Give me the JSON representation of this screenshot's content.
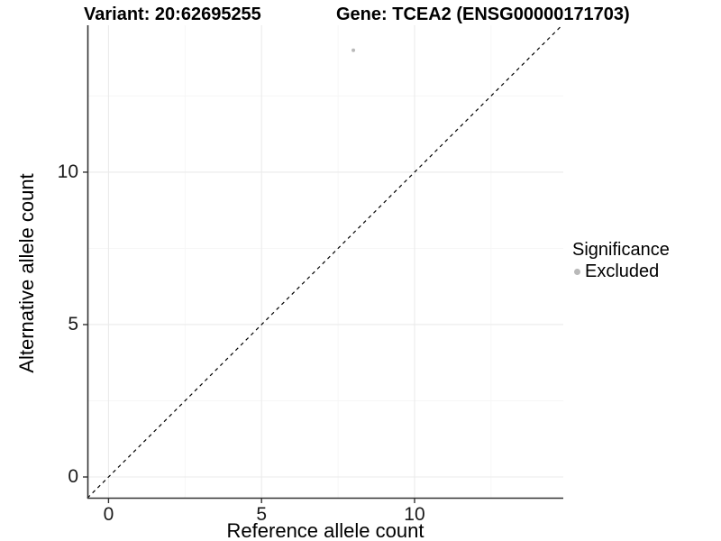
{
  "header": {
    "title_left": "Variant: 20:62695255",
    "title_right": "Gene: TCEA2 (ENSG00000171703)"
  },
  "chart_data": {
    "type": "scatter",
    "xlabel": "Reference allele count",
    "ylabel": "Alternative allele count",
    "xlim": [
      -0.69,
      14.86
    ],
    "ylim": [
      -0.71,
      14.82
    ],
    "x_tick_values": [
      0,
      5,
      10
    ],
    "x_tick_labels": [
      "0",
      "5",
      "10"
    ],
    "y_tick_values": [
      0,
      5,
      10
    ],
    "y_tick_labels": [
      "0",
      "5",
      "10"
    ],
    "x_minor_ticks": [
      2.5,
      7.5,
      12.5
    ],
    "y_minor_ticks": [
      2.5,
      7.5,
      12.5
    ],
    "grid": true,
    "identity_line": {
      "equation": "y = x",
      "style": "dashed",
      "color": "#000000"
    },
    "series": [
      {
        "name": "Excluded",
        "color": "#b9b9b9",
        "points": [
          [
            8,
            14
          ]
        ]
      }
    ],
    "legend": {
      "position": "right",
      "title": "Significance",
      "entries": [
        {
          "label": "Excluded",
          "color": "#b9b9b9"
        }
      ]
    }
  },
  "colors": {
    "background": "#ffffff",
    "grid_major": "#ebebeb",
    "grid_minor": "#f5f5f5",
    "axis_line": "#333333",
    "tick_mark": "#333333",
    "tick_text": "#1a1a1a",
    "title_text": "#000000"
  }
}
